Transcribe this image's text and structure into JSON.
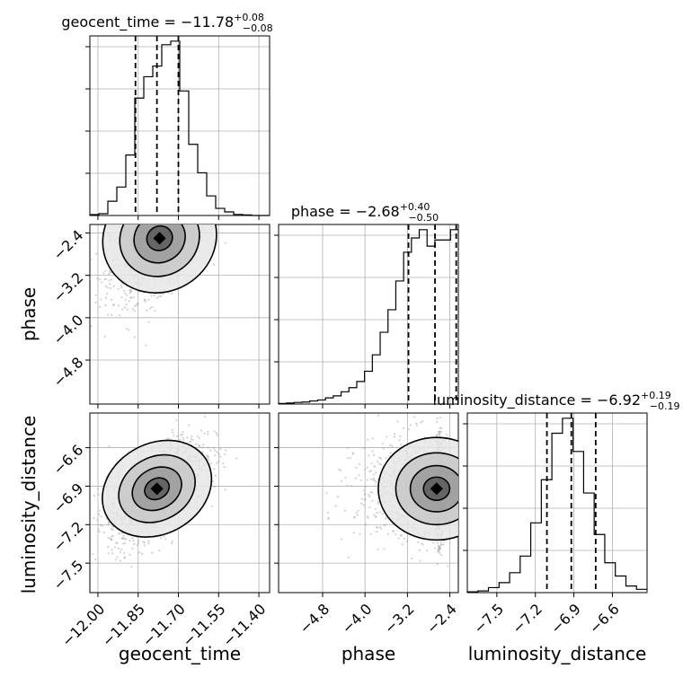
{
  "chart_data": {
    "type": "corner",
    "parameters": [
      {
        "name": "geocent_time",
        "title": {
          "main": "geocent_time = −11.78",
          "sup": "+0.08",
          "sub": "−0.08"
        },
        "xlabel": "geocent_time",
        "range": [
          -12.03,
          -11.36
        ],
        "ticks": [
          -12.0,
          -11.85,
          -11.7,
          -11.55,
          -11.4
        ],
        "tick_labels": [
          "−12.00",
          "−11.85",
          "−11.70",
          "−11.55",
          "−11.40"
        ],
        "quantiles": [
          -11.86,
          -11.78,
          -11.7
        ],
        "hist": [
          0.5,
          1,
          8,
          16,
          34,
          66,
          78,
          84,
          96,
          98,
          70,
          40,
          24,
          11,
          4,
          2,
          0.6,
          0.3,
          0,
          0
        ]
      },
      {
        "name": "phase",
        "title": {
          "main": "phase = −2.68",
          "sup": "+0.40",
          "sub": "−0.50"
        },
        "ylabel": "phase",
        "xlabel": "phase",
        "range": [
          -5.63,
          -2.24
        ],
        "ticks": [
          -4.8,
          -4.0,
          -3.2,
          -2.4
        ],
        "tick_labels": [
          "−4.8",
          "−4.0",
          "−3.2",
          "−2.4"
        ],
        "quantiles": [
          -3.18,
          -2.68,
          -2.28
        ],
        "hist": [
          0.3,
          0.5,
          0.8,
          1,
          1.5,
          2,
          3,
          4,
          6,
          8,
          11,
          16,
          24,
          35,
          46,
          60,
          74,
          81,
          85,
          77,
          80,
          80,
          85
        ]
      },
      {
        "name": "luminosity_distance",
        "title": {
          "main": "luminosity_distance = −6.92",
          "sup": "+0.19",
          "sub": "−0.19"
        },
        "ylabel": "luminosity_distance",
        "xlabel": "luminosity_distance",
        "range": [
          -7.73,
          -6.33
        ],
        "ticks": [
          -7.5,
          -7.2,
          -6.9,
          -6.6
        ],
        "tick_labels": [
          "−7.5",
          "−7.2",
          "−6.9",
          "−6.6"
        ],
        "quantiles": [
          -7.11,
          -6.92,
          -6.73
        ],
        "hist": [
          0.5,
          1,
          3,
          6,
          12,
          22,
          42,
          68,
          96,
          105,
          85,
          60,
          35,
          18,
          10,
          4,
          2
        ]
      }
    ],
    "scatter_panels": [
      {
        "x": "geocent_time",
        "y": "phase",
        "peak": [
          -11.77,
          -2.5
        ]
      },
      {
        "x": "geocent_time",
        "y": "luminosity_distance",
        "peak": [
          -11.78,
          -6.92
        ]
      },
      {
        "x": "phase",
        "y": "luminosity_distance",
        "peak": [
          -2.65,
          -6.92
        ]
      }
    ],
    "grid": true
  }
}
